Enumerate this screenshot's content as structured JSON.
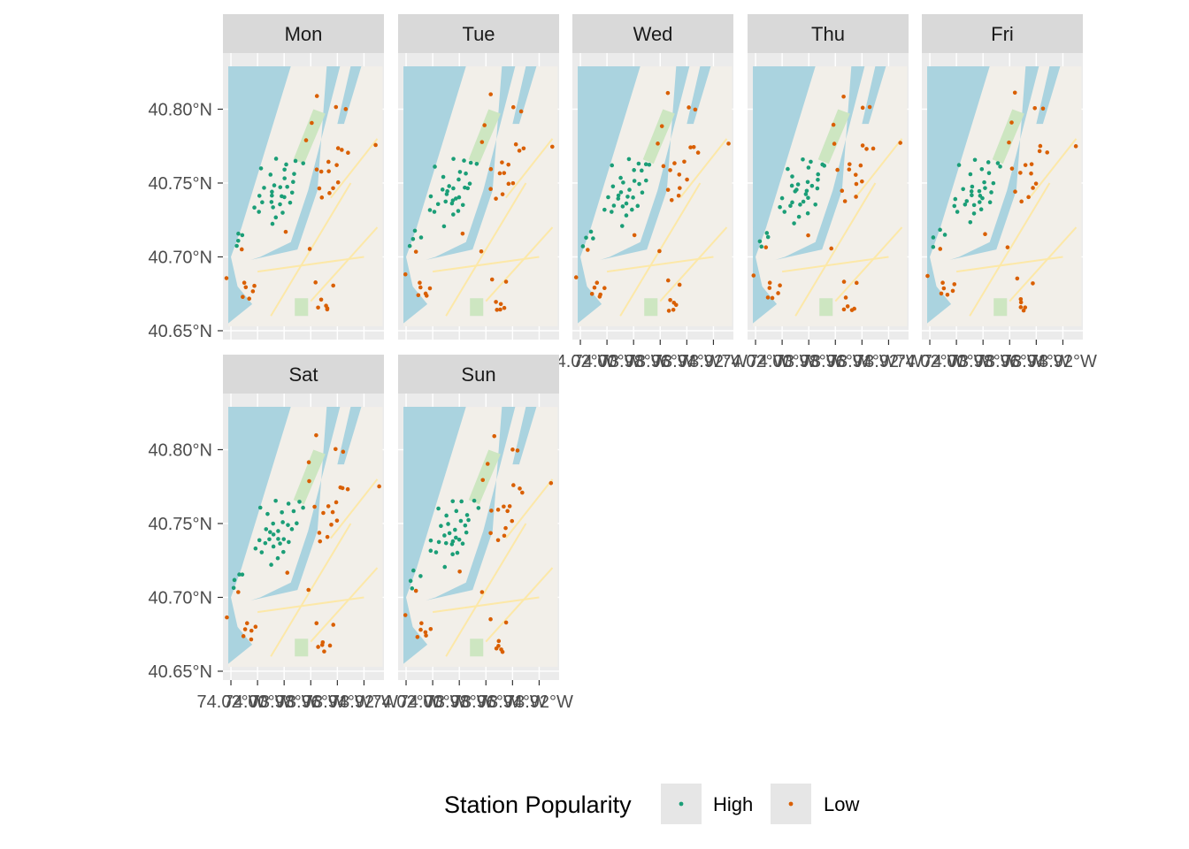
{
  "chart_data": {
    "type": "scatter",
    "facets": [
      "Mon",
      "Tue",
      "Wed",
      "Thu",
      "Fri",
      "Sat",
      "Sun"
    ],
    "y_ticks": [
      "40.65°N",
      "40.70°N",
      "40.75°N",
      "40.80°N"
    ],
    "y_tick_values": [
      40.65,
      40.7,
      40.75,
      40.8
    ],
    "ylim": [
      40.644,
      40.838
    ],
    "x_ticks": [
      "74.02°W",
      "74.00°W",
      "73.98°W",
      "73.96°W",
      "73.94°W",
      "73.92°W"
    ],
    "x_tick_values": [
      -74.02,
      -74.0,
      -73.98,
      -73.96,
      -73.94,
      -73.92
    ],
    "xlim": [
      -74.026,
      -73.905
    ],
    "legend": {
      "title": "Station Popularity",
      "entries": [
        {
          "label": "High",
          "color": "#1b9e77"
        },
        {
          "label": "Low",
          "color": "#d95f02"
        }
      ]
    },
    "colors": {
      "panel_bg": "#ebebeb",
      "strip_bg": "#d9d9d9",
      "grid": "#ffffff",
      "water": "#aad3df",
      "land": "#f2efe9",
      "park": "#cde6c1",
      "road": "#fce8a8"
    },
    "series": [
      {
        "name": "High",
        "points": [
          [
            -73.997,
            40.761
          ],
          [
            -73.991,
            40.755
          ],
          [
            -73.985,
            40.765
          ],
          [
            -73.981,
            40.759
          ],
          [
            -73.977,
            40.764
          ],
          [
            -73.974,
            40.757
          ],
          [
            -73.97,
            40.764
          ],
          [
            -73.967,
            40.762
          ],
          [
            -73.994,
            40.747
          ],
          [
            -73.99,
            40.743
          ],
          [
            -73.987,
            40.749
          ],
          [
            -73.983,
            40.746
          ],
          [
            -73.98,
            40.752
          ],
          [
            -73.977,
            40.748
          ],
          [
            -73.975,
            40.745
          ],
          [
            -73.972,
            40.751
          ],
          [
            -74.0,
            40.74
          ],
          [
            -73.995,
            40.736
          ],
          [
            -73.991,
            40.738
          ],
          [
            -73.987,
            40.735
          ],
          [
            -73.983,
            40.741
          ],
          [
            -73.979,
            40.739
          ],
          [
            -73.976,
            40.736
          ],
          [
            -73.981,
            40.731
          ],
          [
            -73.986,
            40.728
          ],
          [
            -74.003,
            40.733
          ],
          [
            -73.998,
            40.729
          ],
          [
            -73.99,
            40.722
          ],
          [
            -74.013,
            40.717
          ],
          [
            -74.016,
            40.712
          ],
          [
            -74.01,
            40.714
          ],
          [
            -74.017,
            40.706
          ],
          [
            -73.988,
            40.744
          ],
          [
            -73.984,
            40.737
          ]
        ]
      },
      {
        "name": "Low",
        "points": [
          [
            -73.955,
            40.81
          ],
          [
            -73.96,
            40.79
          ],
          [
            -73.94,
            40.8
          ],
          [
            -73.935,
            40.8
          ],
          [
            -73.938,
            40.775
          ],
          [
            -73.942,
            40.763
          ],
          [
            -73.945,
            40.757
          ],
          [
            -73.948,
            40.763
          ],
          [
            -73.951,
            40.758
          ],
          [
            -73.944,
            40.748
          ],
          [
            -73.939,
            40.751
          ],
          [
            -73.946,
            40.742
          ],
          [
            -73.952,
            40.739
          ],
          [
            -73.936,
            40.773
          ],
          [
            -73.933,
            40.772
          ],
          [
            -73.91,
            40.776
          ],
          [
            -73.955,
            40.745
          ],
          [
            -73.962,
            40.778
          ],
          [
            -73.957,
            40.76
          ],
          [
            -74.022,
            40.687
          ],
          [
            -74.013,
            40.705
          ],
          [
            -74.008,
            40.678
          ],
          [
            -74.004,
            40.676
          ],
          [
            -74.011,
            40.674
          ],
          [
            -74.006,
            40.673
          ],
          [
            -74.003,
            40.68
          ],
          [
            -74.009,
            40.681
          ],
          [
            -73.962,
            40.705
          ],
          [
            -73.955,
            40.684
          ],
          [
            -73.95,
            40.668
          ],
          [
            -73.953,
            40.665
          ],
          [
            -73.949,
            40.663
          ],
          [
            -73.951,
            40.671
          ],
          [
            -73.944,
            40.682
          ],
          [
            -73.947,
            40.666
          ],
          [
            -73.979,
            40.716
          ]
        ]
      }
    ]
  }
}
